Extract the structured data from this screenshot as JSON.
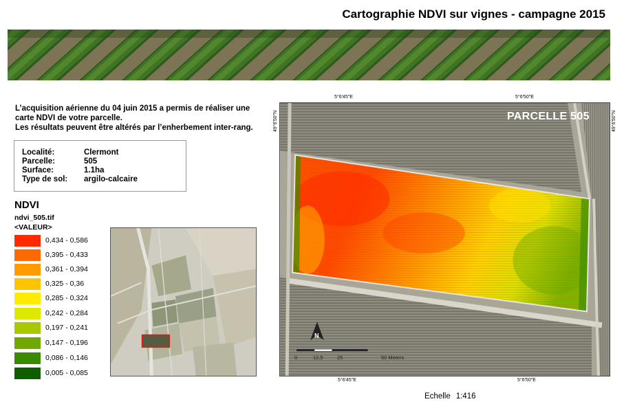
{
  "title": "Cartographie NDVI sur vignes - campagne 2015",
  "intro": {
    "line1": "L’acquisition aérienne du 04 juin 2015 a permis de réaliser une",
    "line2": "carte NDVI de votre parcelle.",
    "line3": "Les résultats peuvent être altérés par l’enherbement inter-rang."
  },
  "info": [
    {
      "key": "Localité:",
      "value": "Clermont"
    },
    {
      "key": "Parcelle:",
      "value": "505"
    },
    {
      "key": "Surface:",
      "value": "1.1ha"
    },
    {
      "key": "Type de sol:",
      "value": "argilo-calcaire"
    }
  ],
  "legend": {
    "title": "NDVI",
    "file": "ndvi_505.tif",
    "field": "<VALEUR>",
    "classes": [
      {
        "label": "0,434 - 0,586",
        "color": "#ff2a00"
      },
      {
        "label": "0,395 - 0,433",
        "color": "#ff6a00"
      },
      {
        "label": "0,361 - 0,394",
        "color": "#ff9a00"
      },
      {
        "label": "0,325 - 0,36",
        "color": "#ffc400"
      },
      {
        "label": "0,285 - 0,324",
        "color": "#ffeb00"
      },
      {
        "label": "0,242 - 0,284",
        "color": "#dfe800"
      },
      {
        "label": "0,197 - 0,241",
        "color": "#a8c800"
      },
      {
        "label": "0,147 - 0,196",
        "color": "#6fa800"
      },
      {
        "label": "0,086 - 0,146",
        "color": "#3a8a00"
      },
      {
        "label": "0,005 - 0,085",
        "color": "#0e5e00"
      }
    ]
  },
  "map": {
    "parcel_label": "PARCELLE 505",
    "coords_top": [
      "5°6'45\"E",
      "5°6'50\"E"
    ],
    "coords_bottom": [
      "5°6'45\"E",
      "5°6'50\"E"
    ],
    "coord_left": "49°6'50\"N",
    "coord_right": "49°6'50\"N",
    "scalebar": [
      "0",
      "12,5",
      "25",
      "50 Meters"
    ]
  },
  "echelle": {
    "label": "Echelle",
    "value": "1:416"
  }
}
